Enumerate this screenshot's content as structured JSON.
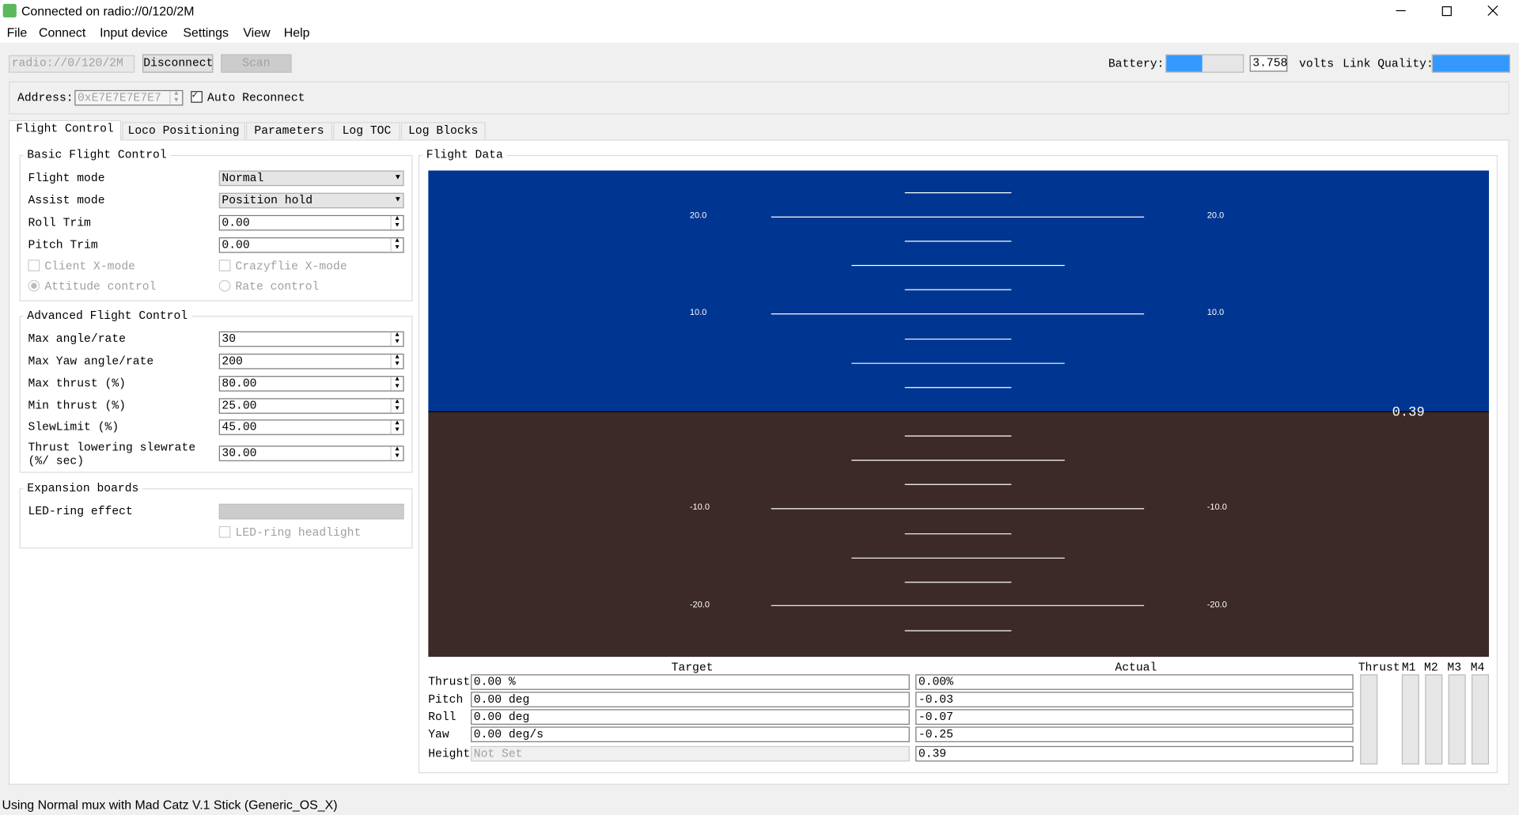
{
  "window": {
    "title": "Connected on radio://0/120/2M"
  },
  "menu": [
    "File",
    "Connect",
    "Input device",
    "Settings",
    "View",
    "Help"
  ],
  "toolbar": {
    "uri": "radio://0/120/2M",
    "disconnect": "Disconnect",
    "scan": "Scan",
    "battery_label": "Battery:",
    "battery_value": "3.758",
    "volts": "volts",
    "link_quality_label": "Link Quality:"
  },
  "address": {
    "label": "Address:",
    "value": "0xE7E7E7E7E7",
    "auto_reconnect": "Auto Reconnect"
  },
  "tabs": [
    "Flight Control",
    "Loco Positioning",
    "Parameters",
    "Log TOC",
    "Log Blocks"
  ],
  "basic": {
    "title": "Basic Flight Control",
    "rows": [
      {
        "label": "Flight mode",
        "value": "Normal"
      },
      {
        "label": "Assist mode",
        "value": "Position hold"
      },
      {
        "label": "Roll Trim",
        "value": "0.00"
      },
      {
        "label": "Pitch Trim",
        "value": "0.00"
      }
    ],
    "checks": [
      "Client X-mode",
      "Crazyflie X-mode"
    ],
    "radios": [
      "Attitude control",
      "Rate control"
    ]
  },
  "advanced": {
    "title": "Advanced Flight Control",
    "rows": [
      {
        "label": "Max angle/rate",
        "value": "30"
      },
      {
        "label": "Max Yaw angle/rate",
        "value": "200"
      },
      {
        "label": "Max thrust (%)",
        "value": "80.00"
      },
      {
        "label": "Min thrust (%)",
        "value": "25.00"
      },
      {
        "label": "SlewLimit (%)",
        "value": "45.00"
      },
      {
        "label": "Thrust lowering slewrate (%/ sec)",
        "value": "30.00"
      }
    ]
  },
  "expansion": {
    "title": "Expansion boards",
    "led_label": "LED-ring effect",
    "headlight": "LED-ring headlight"
  },
  "flight_data": {
    "title": "Flight Data",
    "horizon_labels": [
      "20.0",
      "10.0",
      "-10.0",
      "-20.0"
    ],
    "altitude": "0.39",
    "target_header": "Target",
    "actual_header": "Actual",
    "rows": [
      {
        "label": "Thrust",
        "target": "0.00 %",
        "actual": "0.00%"
      },
      {
        "label": "Pitch",
        "target": "0.00 deg",
        "actual": "-0.03"
      },
      {
        "label": "Roll",
        "target": "0.00 deg",
        "actual": "-0.07"
      },
      {
        "label": "Yaw",
        "target": "0.00 deg/s",
        "actual": "-0.25"
      },
      {
        "label": "Height",
        "target": "Not Set",
        "actual": "0.39"
      }
    ],
    "motors": [
      "Thrust",
      "M1",
      "M2",
      "M3",
      "M4"
    ]
  },
  "status": "Using Normal mux with Mad Catz V.1 Stick (Generic_OS_X)"
}
